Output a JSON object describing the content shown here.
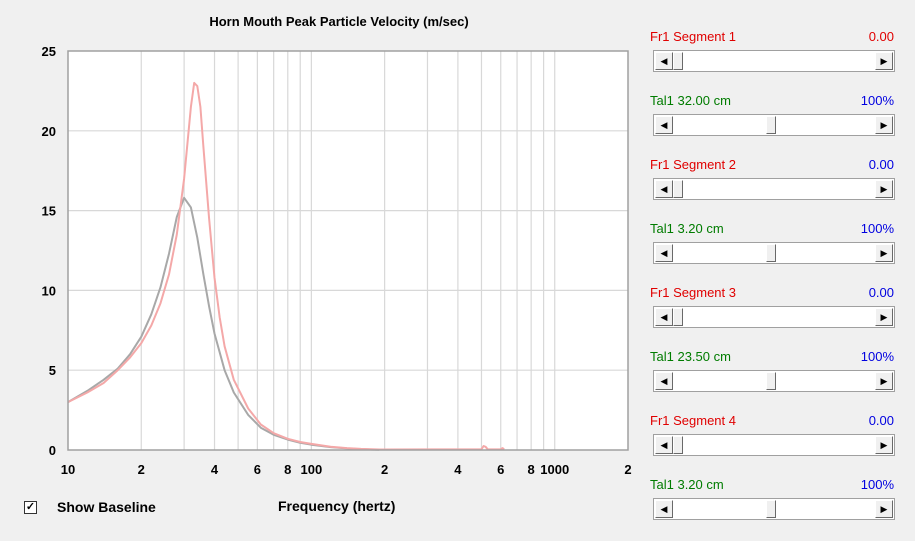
{
  "chart_data": {
    "type": "line",
    "title": "Horn Mouth Peak Particle Velocity (m/sec)",
    "xlabel": "Frequency (hertz)",
    "ylabel": "",
    "x_scale": "log",
    "xlim": [
      10,
      2000
    ],
    "ylim": [
      0,
      25
    ],
    "grid": true,
    "y_ticks": [
      "0",
      "5",
      "10",
      "15",
      "20",
      "25"
    ],
    "x_tick_labels": [
      {
        "x": 10,
        "label": "10"
      },
      {
        "x": 20,
        "label": "2"
      },
      {
        "x": 40,
        "label": "4"
      },
      {
        "x": 60,
        "label": "6"
      },
      {
        "x": 80,
        "label": "8"
      },
      {
        "x": 100,
        "label": "100"
      },
      {
        "x": 200,
        "label": "2"
      },
      {
        "x": 400,
        "label": "4"
      },
      {
        "x": 600,
        "label": "6"
      },
      {
        "x": 800,
        "label": "8"
      },
      {
        "x": 1000,
        "label": "1000"
      },
      {
        "x": 2000,
        "label": "2"
      }
    ],
    "series": [
      {
        "color": "#a8a8a8",
        "x": [
          10,
          12,
          14,
          16,
          18,
          20,
          22,
          24,
          26,
          28,
          30,
          32,
          34,
          36,
          38,
          40,
          44,
          48,
          55,
          62,
          70,
          80,
          90,
          100,
          120,
          140,
          160,
          190
        ],
        "y": [
          3.0,
          3.7,
          4.4,
          5.1,
          6.0,
          7.1,
          8.5,
          10.2,
          12.3,
          14.6,
          15.8,
          15.2,
          13.3,
          11.0,
          9.0,
          7.3,
          5.0,
          3.6,
          2.2,
          1.4,
          0.95,
          0.65,
          0.45,
          0.33,
          0.18,
          0.1,
          0.05,
          0.02
        ]
      },
      {
        "color": "#f4a8a8",
        "x": [
          10,
          12,
          14,
          16,
          18,
          20,
          22,
          24,
          26,
          28,
          30,
          32,
          33,
          34,
          35,
          36,
          38,
          40,
          42,
          44,
          48,
          55,
          62,
          70,
          80,
          90,
          100,
          120,
          140,
          160,
          190,
          500,
          510,
          520,
          530,
          600,
          610,
          620
        ],
        "y": [
          3.0,
          3.6,
          4.2,
          5.0,
          5.8,
          6.7,
          7.8,
          9.2,
          11.0,
          13.5,
          17.0,
          21.5,
          23.0,
          22.8,
          21.5,
          19.0,
          14.5,
          10.8,
          8.3,
          6.5,
          4.4,
          2.6,
          1.6,
          1.05,
          0.7,
          0.5,
          0.38,
          0.2,
          0.12,
          0.07,
          0.03,
          0.05,
          0.25,
          0.2,
          0.05,
          0.04,
          0.12,
          0.04
        ]
      }
    ]
  },
  "baseline": {
    "label": "Show Baseline",
    "checked": true
  },
  "controls": [
    {
      "label": "Fr1  Segment 1",
      "value": "0.00",
      "label_color": "red",
      "value_color": "red",
      "thumb": 0.0
    },
    {
      "label": "Tal1  32.00 cm",
      "value": "100%",
      "label_color": "green",
      "value_color": "blue",
      "thumb": 0.48
    },
    {
      "label": "Fr1  Segment 2",
      "value": "0.00",
      "label_color": "red",
      "value_color": "blue",
      "thumb": 0.0
    },
    {
      "label": "Tal1  3.20 cm",
      "value": "100%",
      "label_color": "green",
      "value_color": "blue",
      "thumb": 0.48
    },
    {
      "label": "Fr1  Segment 3",
      "value": "0.00",
      "label_color": "red",
      "value_color": "blue",
      "thumb": 0.0
    },
    {
      "label": "Tal1  23.50 cm",
      "value": "100%",
      "label_color": "green",
      "value_color": "blue",
      "thumb": 0.48
    },
    {
      "label": "Fr1  Segment 4",
      "value": "0.00",
      "label_color": "red",
      "value_color": "blue",
      "thumb": 0.0
    },
    {
      "label": "Tal1  3.20 cm",
      "value": "100%",
      "label_color": "green",
      "value_color": "blue",
      "thumb": 0.48
    }
  ]
}
